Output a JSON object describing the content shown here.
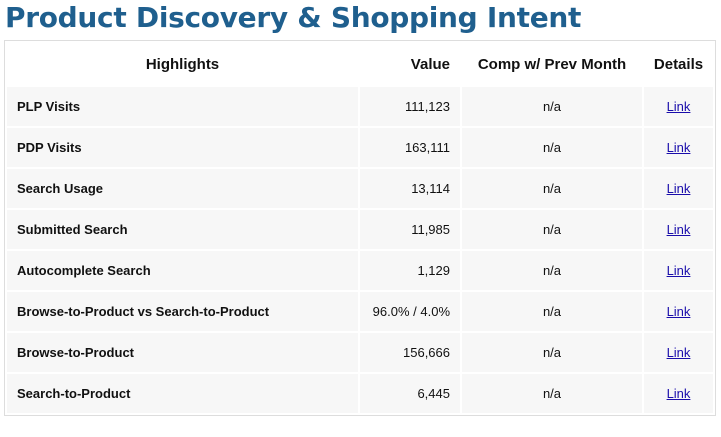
{
  "header": {
    "title": "Product Discovery & Shopping Intent"
  },
  "table": {
    "headers": [
      "Highlights",
      "Value",
      "Comp w/ Prev Month",
      "Details"
    ],
    "rows": [
      [
        "PLP Visits",
        "111,123",
        "n/a",
        "Link"
      ],
      [
        "PDP Visits",
        "163,111",
        "n/a",
        "Link"
      ],
      [
        "Search Usage",
        "13,114",
        "n/a",
        "Link"
      ],
      [
        "Submitted Search",
        "11,985",
        "n/a",
        "Link"
      ],
      [
        "Autocomplete Search",
        "1,129",
        "n/a",
        "Link"
      ],
      [
        "Browse-to-Product vs Search-to-Product",
        "96.0% / 4.0%",
        "n/a",
        "Link"
      ],
      [
        "Browse-to-Product",
        "156,666",
        "n/a",
        "Link"
      ],
      [
        "Search-to-Product",
        "6,445",
        "n/a",
        "Link"
      ]
    ]
  }
}
